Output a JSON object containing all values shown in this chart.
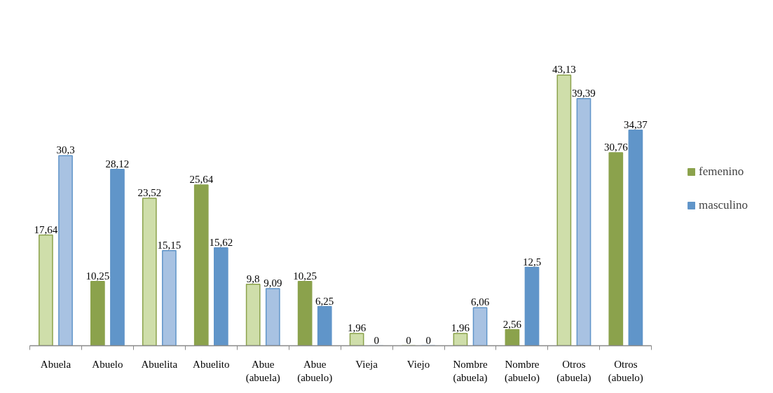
{
  "chart_data": {
    "type": "bar",
    "categories": [
      "Abuela",
      "Abuelo",
      "Abuelita",
      "Abuelito",
      "Abue (abuela)",
      "Abue (abuelo)",
      "Vieja",
      "Viejo",
      "Nombre (abuela)",
      "Nombre (abuelo)",
      "Otros (abuela)",
      "Otros (abuelo)"
    ],
    "series": [
      {
        "name": "femenino",
        "color": "#8ba24c",
        "colors": [
          "#cfdeaa",
          "#8ba24c",
          "#cfdeaa",
          "#8ba24c",
          "#cfdeaa",
          "#8ba24c",
          "#cfdeaa",
          "#8ba24c",
          "#cfdeaa",
          "#8ba24c",
          "#cfdeaa",
          "#8ba24c"
        ],
        "values": [
          17.64,
          10.25,
          23.52,
          25.64,
          9.8,
          10.25,
          1.96,
          0,
          1.96,
          2.56,
          43.13,
          30.76
        ],
        "value_labels": [
          "17,64",
          "10,25",
          "23,52",
          "25,64",
          "9,8",
          "10,25",
          "1,96",
          "0",
          "1,96",
          "2,56",
          "43,13",
          "30,76"
        ]
      },
      {
        "name": "masculino",
        "color": "#6095c9",
        "colors": [
          "#a8c2e2",
          "#6095c9",
          "#a8c2e2",
          "#6095c9",
          "#a8c2e2",
          "#6095c9",
          "#a8c2e2",
          "#6095c9",
          "#a8c2e2",
          "#6095c9",
          "#a8c2e2",
          "#6095c9"
        ],
        "values": [
          30.3,
          28.12,
          15.15,
          15.62,
          9.09,
          6.25,
          0,
          0,
          6.06,
          12.5,
          39.39,
          34.37
        ],
        "value_labels": [
          "30,3",
          "28,12",
          "15,15",
          "15,62",
          "9,09",
          "6,25",
          "0",
          "0",
          "6,06",
          "12,5",
          "39,39",
          "34,37"
        ]
      }
    ],
    "legend": "right",
    "tick_labels": "x"
  }
}
